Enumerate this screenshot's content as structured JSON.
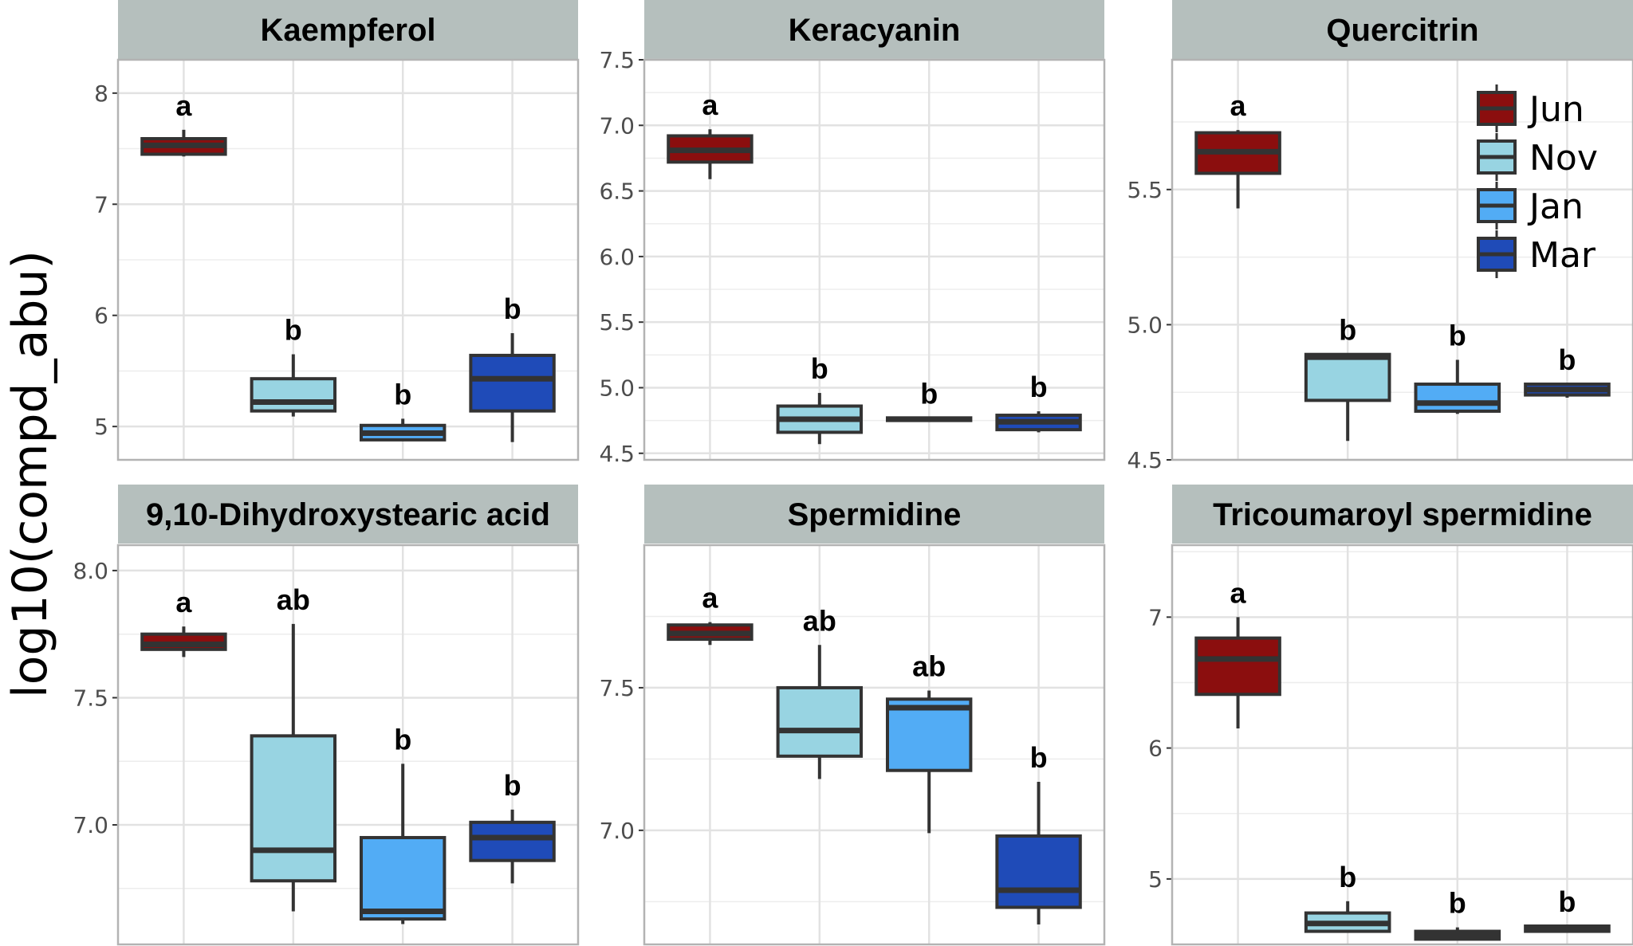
{
  "chart_data": {
    "type": "boxplot",
    "ylabel": "log10(compd_abu)",
    "xlabel": "",
    "groups": [
      "Jun",
      "Nov",
      "Jan",
      "Mar"
    ],
    "colors": {
      "Jun": "#8b0e0e",
      "Nov": "#98d4e2",
      "Jan": "#52acf5",
      "Mar": "#1f4bb8"
    },
    "grid": true,
    "legend": {
      "position": "top-right",
      "title": "",
      "entries": [
        "Jun",
        "Nov",
        "Jan",
        "Mar"
      ]
    },
    "panels": [
      {
        "title": "Kaempferol",
        "ylim": [
          4.7,
          8.3
        ],
        "yticks": [
          5,
          6,
          7,
          8
        ],
        "yticklabels": [
          "5",
          "6",
          "7",
          "8"
        ],
        "boxes": [
          {
            "group": "Jun",
            "min": 7.43,
            "q1": 7.45,
            "median": 7.53,
            "q3": 7.59,
            "max": 7.67,
            "letter": "a"
          },
          {
            "group": "Nov",
            "min": 5.09,
            "q1": 5.14,
            "median": 5.22,
            "q3": 5.43,
            "max": 5.65,
            "letter": "b"
          },
          {
            "group": "Jan",
            "min": 4.88,
            "q1": 4.88,
            "median": 4.94,
            "q3": 5.01,
            "max": 5.07,
            "letter": "b"
          },
          {
            "group": "Mar",
            "min": 4.86,
            "q1": 5.14,
            "median": 5.43,
            "q3": 5.64,
            "max": 5.84,
            "letter": "b"
          }
        ]
      },
      {
        "title": "Keracyanin",
        "ylim": [
          4.45,
          7.5
        ],
        "yticks": [
          4.5,
          5.0,
          5.5,
          6.0,
          6.5,
          7.0,
          7.5
        ],
        "yticklabels": [
          "4.5",
          "5.0",
          "5.5",
          "6.0",
          "6.5",
          "7.0",
          "7.5"
        ],
        "boxes": [
          {
            "group": "Jun",
            "min": 6.59,
            "q1": 6.72,
            "median": 6.81,
            "q3": 6.92,
            "max": 6.97,
            "letter": "a"
          },
          {
            "group": "Nov",
            "min": 4.57,
            "q1": 4.66,
            "median": 4.76,
            "q3": 4.86,
            "max": 4.96,
            "letter": "b"
          },
          {
            "group": "Jan",
            "min": 4.75,
            "q1": 4.75,
            "median": 4.76,
            "q3": 4.77,
            "max": 4.77,
            "letter": "b"
          },
          {
            "group": "Mar",
            "min": 4.66,
            "q1": 4.68,
            "median": 4.74,
            "q3": 4.79,
            "max": 4.82,
            "letter": "b"
          }
        ]
      },
      {
        "title": "Quercitrin",
        "ylim": [
          4.5,
          5.98
        ],
        "yticks": [
          4.5,
          5.0,
          5.5
        ],
        "yticklabels": [
          "4.5",
          "5.0",
          "5.5"
        ],
        "boxes": [
          {
            "group": "Jun",
            "min": 5.43,
            "q1": 5.56,
            "median": 5.64,
            "q3": 5.71,
            "max": 5.72,
            "letter": "a"
          },
          {
            "group": "Nov",
            "min": 4.57,
            "q1": 4.72,
            "median": 4.88,
            "q3": 4.89,
            "max": 4.89,
            "letter": "b"
          },
          {
            "group": "Jan",
            "min": 4.67,
            "q1": 4.68,
            "median": 4.71,
            "q3": 4.78,
            "max": 4.87,
            "letter": "b"
          },
          {
            "group": "Mar",
            "min": 4.73,
            "q1": 4.74,
            "median": 4.76,
            "q3": 4.78,
            "max": 4.78,
            "letter": "b"
          }
        ]
      },
      {
        "title": "9,10-Dihydroxystearic acid",
        "ylim": [
          6.53,
          8.1
        ],
        "yticks": [
          7.0,
          7.5,
          8.0
        ],
        "yticklabels": [
          "7.0",
          "7.5",
          "8.0"
        ],
        "boxes": [
          {
            "group": "Jun",
            "min": 7.66,
            "q1": 7.69,
            "median": 7.71,
            "q3": 7.75,
            "max": 7.78,
            "letter": "a"
          },
          {
            "group": "Nov",
            "min": 6.66,
            "q1": 6.78,
            "median": 6.9,
            "q3": 7.35,
            "max": 7.79,
            "letter": "ab"
          },
          {
            "group": "Jan",
            "min": 6.61,
            "q1": 6.63,
            "median": 6.66,
            "q3": 6.95,
            "max": 7.24,
            "letter": "b"
          },
          {
            "group": "Mar",
            "min": 6.77,
            "q1": 6.86,
            "median": 6.95,
            "q3": 7.01,
            "max": 7.06,
            "letter": "b"
          }
        ]
      },
      {
        "title": "Spermidine",
        "ylim": [
          6.6,
          8.0
        ],
        "yticks": [
          7.0,
          7.5
        ],
        "yticklabels": [
          "7.0",
          "7.5"
        ],
        "boxes": [
          {
            "group": "Jun",
            "min": 7.65,
            "q1": 7.67,
            "median": 7.69,
            "q3": 7.72,
            "max": 7.73,
            "letter": "a"
          },
          {
            "group": "Nov",
            "min": 7.18,
            "q1": 7.26,
            "median": 7.35,
            "q3": 7.5,
            "max": 7.65,
            "letter": "ab"
          },
          {
            "group": "Jan",
            "min": 6.99,
            "q1": 7.21,
            "median": 7.43,
            "q3": 7.46,
            "max": 7.49,
            "letter": "ab"
          },
          {
            "group": "Mar",
            "min": 6.67,
            "q1": 6.73,
            "median": 6.79,
            "q3": 6.98,
            "max": 7.17,
            "letter": "b"
          }
        ]
      },
      {
        "title": "Tricoumaroyl spermidine",
        "ylim": [
          4.5,
          7.55
        ],
        "yticks": [
          5,
          6,
          7
        ],
        "yticklabels": [
          "5",
          "6",
          "7"
        ],
        "boxes": [
          {
            "group": "Jun",
            "min": 6.15,
            "q1": 6.41,
            "median": 6.68,
            "q3": 6.84,
            "max": 7.0,
            "letter": "a"
          },
          {
            "group": "Nov",
            "min": 4.59,
            "q1": 4.6,
            "median": 4.66,
            "q3": 4.74,
            "max": 4.83,
            "letter": "b"
          },
          {
            "group": "Jan",
            "min": 4.54,
            "q1": 4.54,
            "median": 4.57,
            "q3": 4.6,
            "max": 4.63,
            "letter": "b"
          },
          {
            "group": "Mar",
            "min": 4.59,
            "q1": 4.6,
            "median": 4.61,
            "q3": 4.64,
            "max": 4.64,
            "letter": "b"
          }
        ]
      }
    ]
  }
}
